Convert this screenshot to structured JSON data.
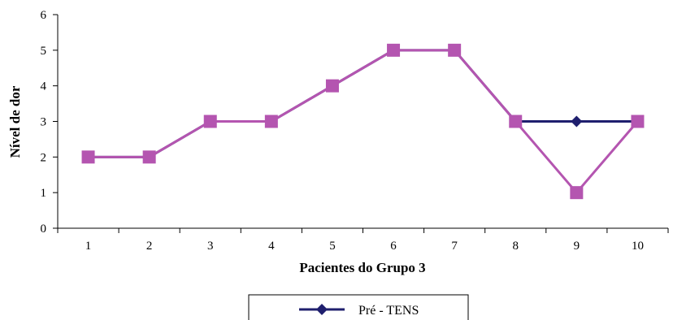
{
  "chart_data": {
    "type": "line",
    "title": "",
    "xlabel": "Pacientes do Grupo 3",
    "ylabel": "Nível de dor",
    "categories": [
      "1",
      "2",
      "3",
      "4",
      "5",
      "6",
      "7",
      "8",
      "9",
      "10"
    ],
    "yticks": [
      "0",
      "1",
      "2",
      "3",
      "4",
      "5",
      "6"
    ],
    "ylim": [
      0,
      6
    ],
    "grid": false,
    "legend_position": "bottom",
    "series": [
      {
        "name": "Pré - TENS",
        "values": [
          2,
          2,
          3,
          3,
          4,
          5,
          5,
          3,
          3,
          3
        ],
        "color": "#1f1f6e",
        "marker": "diamond"
      },
      {
        "name": "",
        "values": [
          2,
          2,
          3,
          3,
          4,
          5,
          5,
          3,
          1,
          3
        ],
        "color": "#b455b0",
        "marker": "square"
      }
    ]
  }
}
